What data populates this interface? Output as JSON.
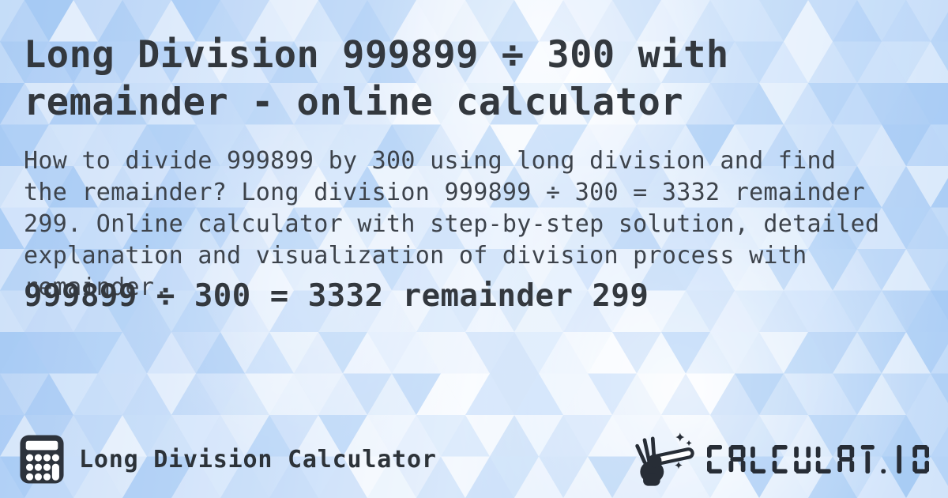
{
  "header": {
    "title": "Long Division 999899 ÷ 300 with\nremainder - online calculator"
  },
  "description": "How to divide 999899 by 300 using long division and find\nthe remainder? Long division 999899 ÷ 300 = 3332 remainder\n299. Online calculator with step-by-step solution, detailed\nexplanation and visualization of division process with\nremainder.",
  "result_heading": "999899 ÷ 300 = 3332 remainder 299",
  "footer": {
    "app_name": "Long Division Calculator",
    "app_icon": "calculator-icon",
    "brand_wordmark": "CALCULAT.IO",
    "brand_icon": "magic-wand-icon"
  },
  "colors": {
    "title_text": "#33383e",
    "body_text": "#3d434b",
    "footer_text": "#2d3339",
    "icon_dark": "#272d36",
    "background_blue": "#a9ccf5",
    "background_white": "#ffffff"
  }
}
